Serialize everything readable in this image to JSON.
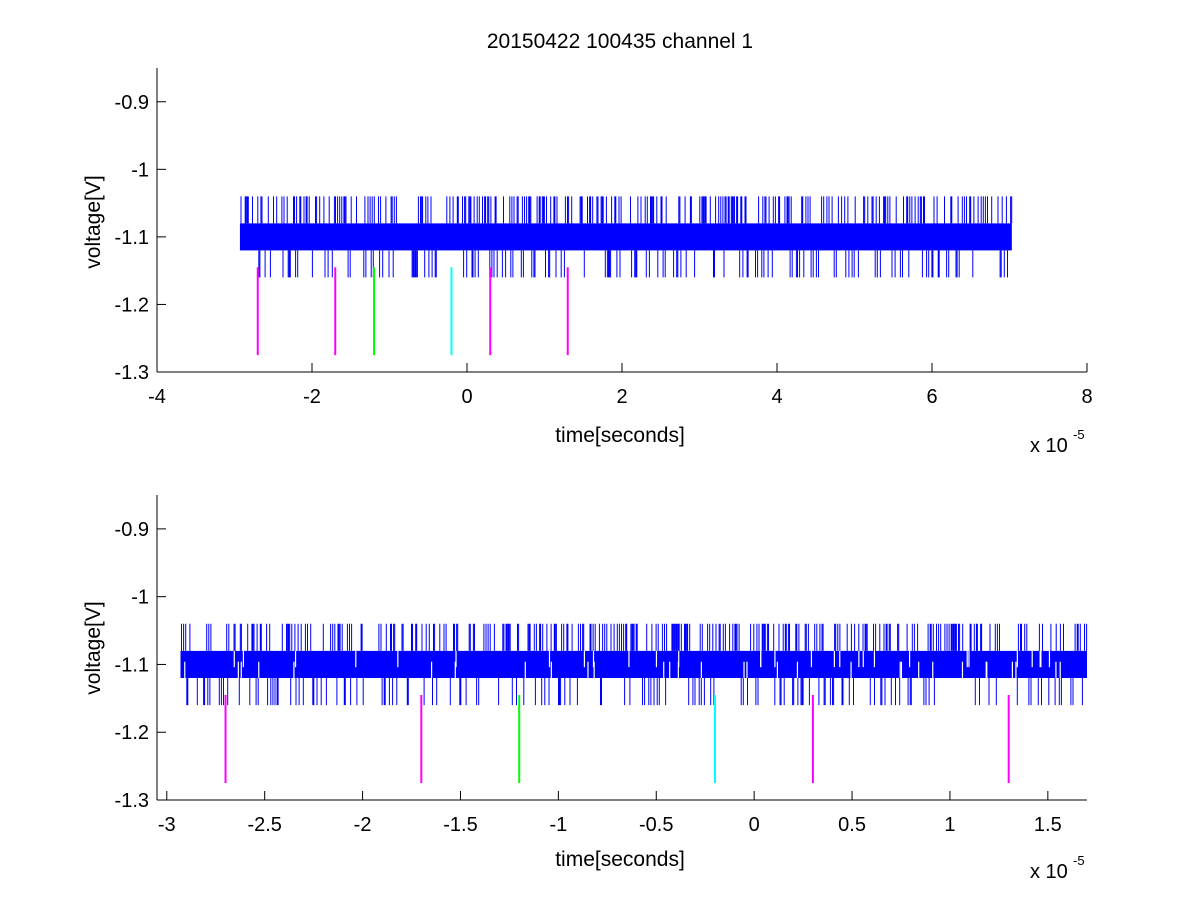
{
  "figure": {
    "title": "20150422 100435 channel 1",
    "colors": {
      "signal": "#0000ff",
      "marker_magenta": "#ff00ff",
      "marker_green": "#00ff00",
      "marker_cyan": "#00ffff",
      "axes": "#000000",
      "background": "#ffffff"
    }
  },
  "chart_data": [
    {
      "type": "line",
      "title": "20150422 100435 channel 1",
      "xlabel": "time[seconds]",
      "ylabel": "voltage[V]",
      "x_exponent_base": "x 10",
      "x_exponent_power": "-5",
      "xlim": [
        -4e-05,
        8e-05
      ],
      "ylim": [
        -1.3,
        -0.85
      ],
      "xticks": [
        -4,
        -2,
        0,
        2,
        4,
        6,
        8
      ],
      "xtick_labels": [
        "-4",
        "-2",
        "0",
        "2",
        "4",
        "6",
        "8"
      ],
      "yticks": [
        -0.9,
        -1.0,
        -1.1,
        -1.2,
        -1.3
      ],
      "ytick_labels": [
        "-0.9",
        "-1",
        "-1.1",
        "-1.2",
        "-1.3"
      ],
      "grid": false,
      "series": [
        {
          "kind": "signal",
          "color": "#0000ff",
          "x_range": [
            -2.93e-05,
            7.03e-05
          ],
          "band": [
            -1.12,
            -1.08
          ],
          "spike_levels": {
            "high": -1.04,
            "low": -1.16
          }
        }
      ],
      "markers": {
        "ymin": -1.275,
        "ymax": -1.145,
        "items": [
          {
            "x": -2.7e-05,
            "color": "#ff00ff"
          },
          {
            "x": -1.7e-05,
            "color": "#ff00ff"
          },
          {
            "x": -1.2e-05,
            "color": "#00ff00"
          },
          {
            "x": -2e-06,
            "color": "#00ffff"
          },
          {
            "x": 3e-06,
            "color": "#ff00ff"
          },
          {
            "x": 1.3e-05,
            "color": "#ff00ff"
          }
        ]
      }
    },
    {
      "type": "line",
      "title": "",
      "xlabel": "time[seconds]",
      "ylabel": "voltage[V]",
      "x_exponent_base": "x 10",
      "x_exponent_power": "-5",
      "xlim": [
        -3.05e-05,
        1.7e-05
      ],
      "ylim": [
        -1.3,
        -0.85
      ],
      "xticks": [
        -3,
        -2.5,
        -2,
        -1.5,
        -1,
        -0.5,
        0,
        0.5,
        1,
        1.5
      ],
      "xtick_labels": [
        "-3",
        "-2.5",
        "-2",
        "-1.5",
        "-1",
        "-0.5",
        "0",
        "0.5",
        "1",
        "1.5"
      ],
      "yticks": [
        -0.9,
        -1.0,
        -1.1,
        -1.2,
        -1.3
      ],
      "ytick_labels": [
        "-0.9",
        "-1",
        "-1.1",
        "-1.2",
        "-1.3"
      ],
      "grid": false,
      "series": [
        {
          "kind": "signal",
          "color": "#0000ff",
          "x_range": [
            -2.93e-05,
            1.7e-05
          ],
          "band": [
            -1.12,
            -1.08
          ],
          "spike_levels": {
            "high": -1.04,
            "low": -1.16
          }
        }
      ],
      "markers": {
        "ymin": -1.275,
        "ymax": -1.145,
        "items": [
          {
            "x": -2.7e-05,
            "color": "#ff00ff"
          },
          {
            "x": -1.7e-05,
            "color": "#ff00ff"
          },
          {
            "x": -1.2e-05,
            "color": "#00ff00"
          },
          {
            "x": -2e-06,
            "color": "#00ffff"
          },
          {
            "x": 3e-06,
            "color": "#ff00ff"
          },
          {
            "x": 1.3e-05,
            "color": "#ff00ff"
          }
        ]
      }
    }
  ]
}
